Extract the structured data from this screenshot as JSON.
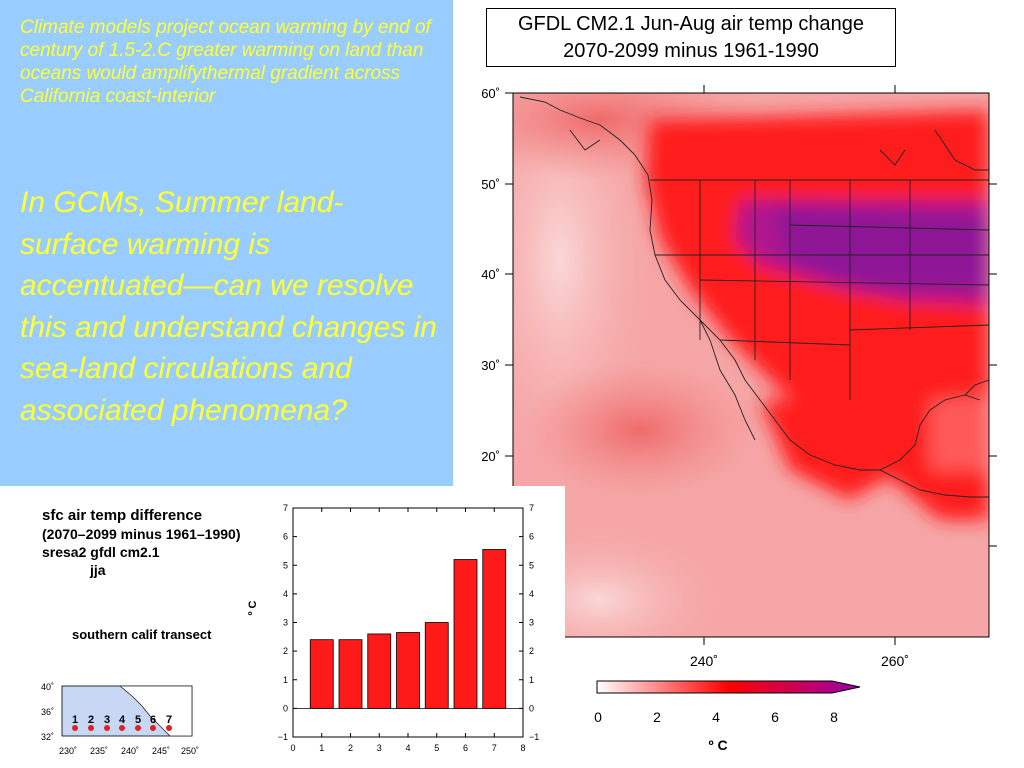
{
  "left_panel": {
    "intro": "Climate models project ocean warming by end of century of 1.5-2.C greater warming on land than oceans would amplifythermal gradient across California coast-interior",
    "main": "In GCMs, Summer land-surface  warming  is accentuated—can we resolve this and understand changes in sea-land circulations and associated phenomena?",
    "background_color": "#99ccff",
    "text_color": "#ffff33"
  },
  "map": {
    "title_line1": "GFDL CM2.1 Jun-Aug air temp change",
    "title_line2": "2070-2099 minus 1961-1990",
    "lat_labels": [
      "60˚",
      "50˚",
      "40˚",
      "30˚",
      "20˚"
    ],
    "lon_labels": [
      "240˚",
      "260˚"
    ],
    "colorbar": {
      "ticks": [
        "0",
        "2",
        "4",
        "6",
        "8"
      ],
      "unit": "º C",
      "colors": [
        "#ffffff",
        "#ff0000",
        "#9900aa"
      ]
    }
  },
  "info": {
    "line1": "sfc air temp difference",
    "line2": "(2070–2099 minus 1961–1990)",
    "line3": "sresa2   gfdl cm2.1",
    "line4": "jja",
    "transect": "southern calif transect"
  },
  "inset": {
    "lat_labels": [
      "40˚",
      "36˚",
      "32˚"
    ],
    "lon_labels": [
      "230˚",
      "235˚",
      "240˚",
      "245˚",
      "250˚"
    ],
    "point_labels": [
      "1",
      "2",
      "3",
      "4",
      "5",
      "6",
      "7"
    ],
    "point_color": "#dd2222"
  },
  "chart_data": {
    "type": "bar",
    "categories": [
      "1",
      "2",
      "3",
      "4",
      "5",
      "6",
      "7"
    ],
    "values": [
      2.4,
      2.4,
      2.6,
      2.65,
      3.0,
      5.2,
      5.55
    ],
    "title": "",
    "xlabel": "",
    "ylabel": "º C",
    "ylim": [
      -1,
      7
    ],
    "xlim": [
      0,
      8
    ],
    "yticks": [
      "−1",
      "0",
      "1",
      "2",
      "3",
      "4",
      "5",
      "6",
      "7"
    ],
    "xticks": [
      "0",
      "1",
      "2",
      "3",
      "4",
      "5",
      "6",
      "7",
      "8"
    ],
    "bar_color": "#ff1a1a",
    "grid": false
  }
}
